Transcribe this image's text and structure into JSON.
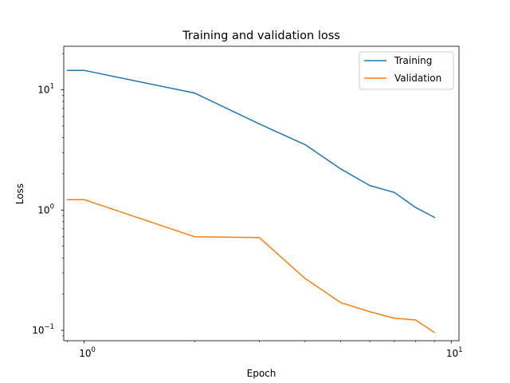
{
  "chart_data": {
    "type": "line",
    "title": "Training and validation loss",
    "xlabel": "Epoch",
    "ylabel": "Loss",
    "xscale": "log",
    "yscale": "log",
    "xlim": [
      0.88,
      10.5
    ],
    "ylim": [
      0.082,
      23
    ],
    "grid": false,
    "legend_position": "top-right",
    "x": [
      0.9,
      1,
      2,
      3,
      4,
      5,
      6,
      7,
      8,
      9
    ],
    "series": [
      {
        "name": "Training",
        "color": "#1f77b4",
        "values": [
          14.5,
          14.5,
          9.4,
          5.2,
          3.5,
          2.2,
          1.6,
          1.4,
          1.05,
          0.87
        ]
      },
      {
        "name": "Validation",
        "color": "#ff7f0e",
        "values": [
          1.22,
          1.22,
          0.6,
          0.59,
          0.27,
          0.17,
          0.143,
          0.126,
          0.122,
          0.096
        ]
      }
    ],
    "x_ticks": [
      {
        "value": 1,
        "base": "10",
        "exp": "0"
      },
      {
        "value": 10,
        "base": "10",
        "exp": "1"
      }
    ],
    "y_ticks": [
      {
        "value": 0.1,
        "base": "10",
        "exp": "−1"
      },
      {
        "value": 1,
        "base": "10",
        "exp": "0"
      },
      {
        "value": 10,
        "base": "10",
        "exp": "1"
      }
    ]
  }
}
